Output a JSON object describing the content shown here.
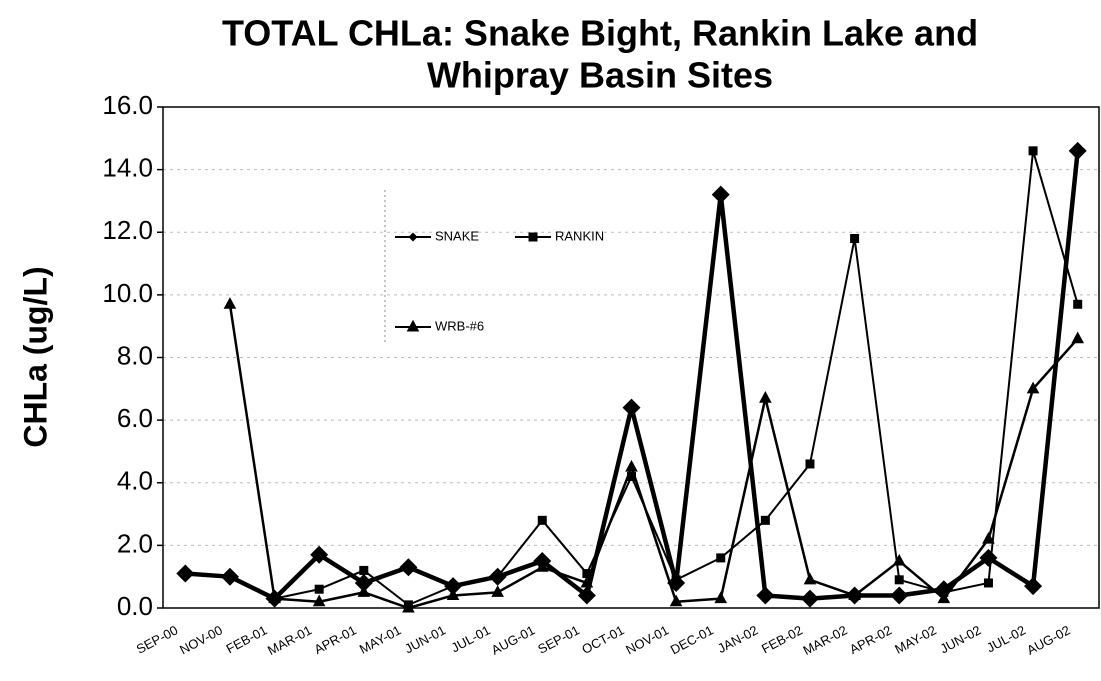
{
  "chart_data": {
    "type": "line",
    "title": [
      "TOTAL CHLa: Snake Bight, Rankin Lake and",
      "Whipray Basin Sites"
    ],
    "y_label": "CHLa (ug/L)",
    "categories": [
      "SEP-00",
      "NOV-00",
      "FEB-01",
      "MAR-01",
      "APR-01",
      "MAY-01",
      "JUN-01",
      "JUL-01",
      "AUG-01",
      "SEP-01",
      "OCT-01",
      "NOV-01",
      "DEC-01",
      "JAN-02",
      "FEB-02",
      "MAR-02",
      "APR-02",
      "MAY-02",
      "JUN-02",
      "JUL-02",
      "AUG-02"
    ],
    "series": [
      {
        "name": "SNAKE",
        "color": "#000000",
        "marker": "diamond",
        "values": [
          1.1,
          1.0,
          0.3,
          1.7,
          0.8,
          1.3,
          0.7,
          1.0,
          1.5,
          0.4,
          6.4,
          0.8,
          13.2,
          0.4,
          0.3,
          0.4,
          0.4,
          0.6,
          1.6,
          0.7,
          14.6
        ]
      },
      {
        "name": "RANKIN",
        "color": "#000000",
        "marker": "square",
        "values": [
          1.1,
          1.0,
          0.3,
          0.6,
          1.2,
          0.1,
          0.7,
          1.0,
          2.8,
          1.1,
          4.2,
          0.9,
          1.6,
          2.8,
          4.6,
          11.8,
          0.9,
          0.5,
          0.8,
          14.6,
          9.7
        ]
      },
      {
        "name": "WRB-#6",
        "color": "#000000",
        "marker": "triangle",
        "values": [
          null,
          9.7,
          0.3,
          0.2,
          0.5,
          0.0,
          0.4,
          0.5,
          1.3,
          0.8,
          4.5,
          0.2,
          0.3,
          6.7,
          0.9,
          0.4,
          1.5,
          0.3,
          2.2,
          7.0,
          8.6
        ]
      }
    ],
    "ylim": [
      0,
      16
    ],
    "yticks": [
      {
        "value": 0,
        "label": "0.0"
      },
      {
        "value": 2,
        "label": "2.0"
      },
      {
        "value": 4,
        "label": "4.0"
      },
      {
        "value": 6,
        "label": "6.0"
      },
      {
        "value": 8,
        "label": "8.0"
      },
      {
        "value": 10,
        "label": "10.0"
      },
      {
        "value": 12,
        "label": "12.0"
      },
      {
        "value": 14,
        "label": "14.0"
      },
      {
        "value": 16,
        "label": "16.0"
      }
    ],
    "grid": true,
    "legend": "upper left"
  }
}
